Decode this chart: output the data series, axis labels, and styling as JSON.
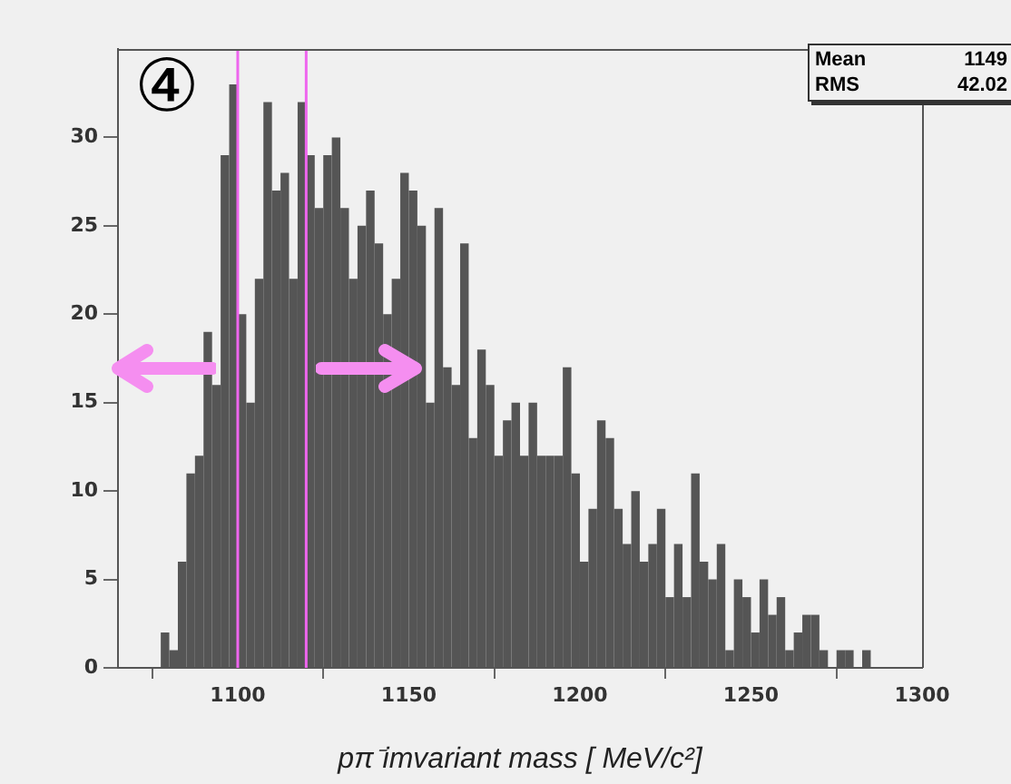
{
  "chart_data": {
    "type": "histogram",
    "xlabel": "pπ⁻imvariant mass [ MeV/c²]",
    "bins": [
      1077.5,
      1080,
      1082.5,
      1085,
      1087.5,
      1090,
      1092.5,
      1095,
      1097.5,
      1100,
      1102.5,
      1105,
      1107.5,
      1110,
      1112.5,
      1115,
      1117.5,
      1120,
      1122.5,
      1125,
      1127.5,
      1130,
      1132.5,
      1135,
      1137.5,
      1140,
      1142.5,
      1145,
      1147.5,
      1150,
      1152.5,
      1155,
      1157.5,
      1160,
      1162.5,
      1165,
      1167.5,
      1170,
      1172.5,
      1175,
      1177.5,
      1180,
      1182.5,
      1185,
      1187.5,
      1190,
      1192.5,
      1195,
      1197.5,
      1200,
      1202.5,
      1205,
      1207.5,
      1210,
      1212.5,
      1215,
      1217.5,
      1220,
      1222.5,
      1225,
      1227.5,
      1230,
      1232.5,
      1235,
      1237.5,
      1240,
      1242.5,
      1245,
      1247.5,
      1250,
      1252.5,
      1255,
      1257.5,
      1260,
      1262.5,
      1265,
      1267.5,
      1270,
      1272.5,
      1275,
      1277.5,
      1280,
      1282.5,
      1285
    ],
    "values": [
      2,
      1,
      6,
      11,
      12,
      19,
      16,
      29,
      33,
      20,
      15,
      22,
      32,
      27,
      28,
      22,
      32,
      29,
      26,
      29,
      30,
      26,
      22,
      25,
      27,
      24,
      20,
      22,
      28,
      27,
      25,
      15,
      26,
      17,
      16,
      24,
      13,
      18,
      16,
      12,
      14,
      15,
      12,
      15,
      12,
      12,
      12,
      17,
      11,
      6,
      9,
      14,
      13,
      9,
      7,
      10,
      6,
      7,
      9,
      4,
      7,
      4,
      11,
      6,
      5,
      7,
      1,
      5,
      4,
      2,
      5,
      3,
      4,
      1,
      2,
      3,
      3,
      1,
      0,
      1,
      1,
      0,
      1
    ],
    "color": "#555555",
    "xlim": [
      1065,
      1300
    ],
    "xticks": [
      1100,
      1150,
      1200,
      1250,
      1300
    ],
    "ylim": [
      0,
      35
    ],
    "yticks": [
      0,
      5,
      10,
      15,
      20,
      25,
      30
    ],
    "grid": false,
    "legend": false,
    "ref_lines": [
      {
        "axis": "x",
        "value": 1100,
        "color": "#ee66ee"
      },
      {
        "axis": "x",
        "value": 1120,
        "color": "#ee66ee"
      }
    ],
    "annotations": [
      "④",
      "Mean 1149",
      "RMS 42.02"
    ]
  }
}
